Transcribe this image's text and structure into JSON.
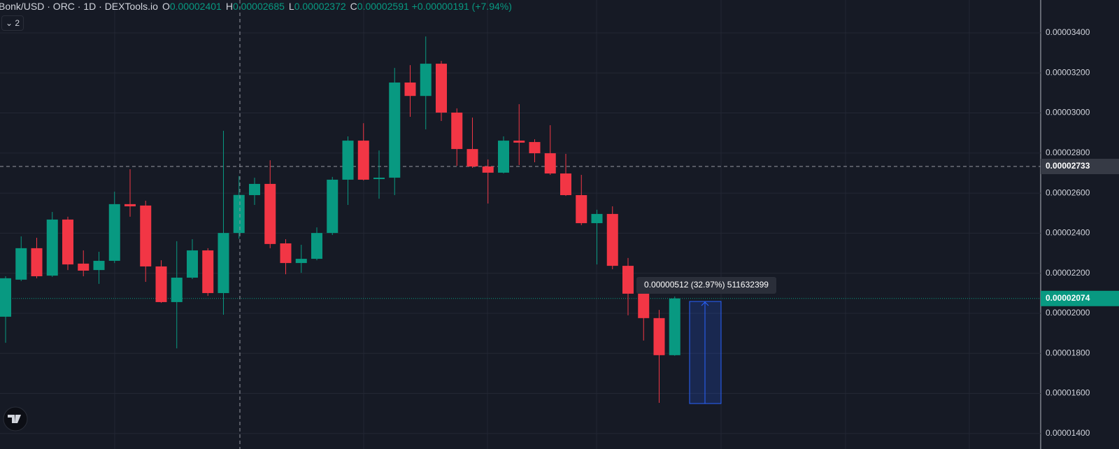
{
  "chart_data": {
    "type": "candlestick",
    "title": "Bonk/USD · ORC · 1D · DEXTools.io",
    "ohlc": [
      {
        "label": "O",
        "value": "0.00002401"
      },
      {
        "label": "H",
        "value": "0.00002685"
      },
      {
        "label": "L",
        "value": "0.00002372"
      },
      {
        "label": "C",
        "value": "0.00002591"
      }
    ],
    "change": "+0.00000191 (+7.94%)",
    "indicators": "2",
    "up_color": "#089981",
    "down_color": "#f23645",
    "open": [
      1.983e-05,
      2.168e-05,
      2.325e-05,
      2.188e-05,
      2.468e-05,
      2.248e-05,
      2.216e-05,
      2.262e-05,
      2.545e-05,
      2.538e-05,
      2.234e-05,
      2.056e-05,
      2.178e-05,
      2.314e-05,
      2.101e-05,
      2.401e-05,
      2.59e-05,
      2.646e-05,
      2.349e-05,
      2.251e-05,
      2.272e-05,
      2.401e-05,
      2.667e-05,
      2.862e-05,
      2.67e-05,
      2.677e-05,
      3.152e-05,
      3.085e-05,
      3.246e-05,
      3.002e-05,
      2.82e-05,
      2.733e-05,
      2.702e-05,
      2.862e-05,
      2.855e-05,
      2.799e-05,
      2.698e-05,
      2.59e-05,
      2.45e-05,
      2.496e-05,
      2.237e-05,
      2.098e-05,
      1.976e-05,
      1.791e-05
    ],
    "high": [
      2.185e-05,
      2.384e-05,
      2.377e-05,
      2.506e-05,
      2.482e-05,
      2.314e-05,
      2.307e-05,
      2.607e-05,
      2.719e-05,
      2.562e-05,
      2.265e-05,
      2.36e-05,
      2.37e-05,
      2.325e-05,
      2.911e-05,
      2.685e-05,
      2.677e-05,
      2.764e-05,
      2.37e-05,
      2.342e-05,
      2.429e-05,
      2.681e-05,
      2.883e-05,
      2.949e-05,
      2.813e-05,
      3.225e-05,
      3.239e-05,
      3.382e-05,
      3.26e-05,
      3.023e-05,
      2.977e-05,
      2.768e-05,
      2.883e-05,
      3.044e-05,
      2.869e-05,
      2.939e-05,
      2.796e-05,
      2.691e-05,
      2.517e-05,
      2.534e-05,
      2.276e-05,
      2.129e-05,
      2.017e-05,
      2.084e-05
    ],
    "low": [
      1.853e-05,
      2.161e-05,
      2.175e-05,
      2.182e-05,
      2.216e-05,
      2.185e-05,
      2.147e-05,
      2.251e-05,
      2.482e-05,
      2.157e-05,
      2.052e-05,
      1.825e-05,
      2.171e-05,
      2.087e-05,
      1.993e-05,
      2.372e-05,
      2.541e-05,
      2.325e-05,
      2.195e-05,
      2.202e-05,
      2.265e-05,
      2.391e-05,
      2.541e-05,
      2.663e-05,
      2.572e-05,
      2.59e-05,
      2.981e-05,
      2.918e-05,
      2.96e-05,
      2.736e-05,
      2.726e-05,
      2.548e-05,
      2.698e-05,
      2.74e-05,
      2.754e-05,
      2.691e-05,
      2.586e-05,
      2.44e-05,
      2.244e-05,
      2.22e-05,
      1.99e-05,
      1.864e-05,
      1.553e-05,
      1.788e-05
    ],
    "close": [
      2.175e-05,
      2.325e-05,
      2.185e-05,
      2.468e-05,
      2.244e-05,
      2.213e-05,
      2.262e-05,
      2.545e-05,
      2.534e-05,
      2.234e-05,
      2.056e-05,
      2.178e-05,
      2.314e-05,
      2.101e-05,
      2.401e-05,
      2.591e-05,
      2.646e-05,
      2.346e-05,
      2.251e-05,
      2.272e-05,
      2.401e-05,
      2.667e-05,
      2.862e-05,
      2.667e-05,
      2.677e-05,
      3.152e-05,
      3.085e-05,
      3.246e-05,
      3.002e-05,
      2.82e-05,
      2.733e-05,
      2.702e-05,
      2.862e-05,
      2.852e-05,
      2.799e-05,
      2.698e-05,
      2.59e-05,
      2.45e-05,
      2.496e-05,
      2.237e-05,
      2.098e-05,
      1.976e-05,
      1.791e-05,
      2.074e-05
    ],
    "ylim": [
      1.368e-05,
      3.564e-05
    ],
    "yticks": [
      {
        "value": 1.4e-05,
        "label": "0.00001400"
      },
      {
        "value": 1.6e-05,
        "label": "0.00001600"
      },
      {
        "value": 1.8e-05,
        "label": "0.00001800"
      },
      {
        "value": 2e-05,
        "label": "0.00002000"
      },
      {
        "value": 2.2e-05,
        "label": "0.00002200"
      },
      {
        "value": 2.4e-05,
        "label": "0.00002400"
      },
      {
        "value": 2.6e-05,
        "label": "0.00002600"
      },
      {
        "value": 2.8e-05,
        "label": "0.00002800"
      },
      {
        "value": 3e-05,
        "label": "0.00003000"
      },
      {
        "value": 3.2e-05,
        "label": "0.00003200"
      },
      {
        "value": 3.4e-05,
        "label": "0.00003400"
      }
    ],
    "grid": true,
    "crosshair_price": {
      "value": 2.733e-05,
      "label": "0.00002733"
    },
    "last_price": {
      "value": 2.074e-05,
      "label": "0.00002074"
    },
    "measure": "0.00000512 (32.97%) 511632399"
  }
}
